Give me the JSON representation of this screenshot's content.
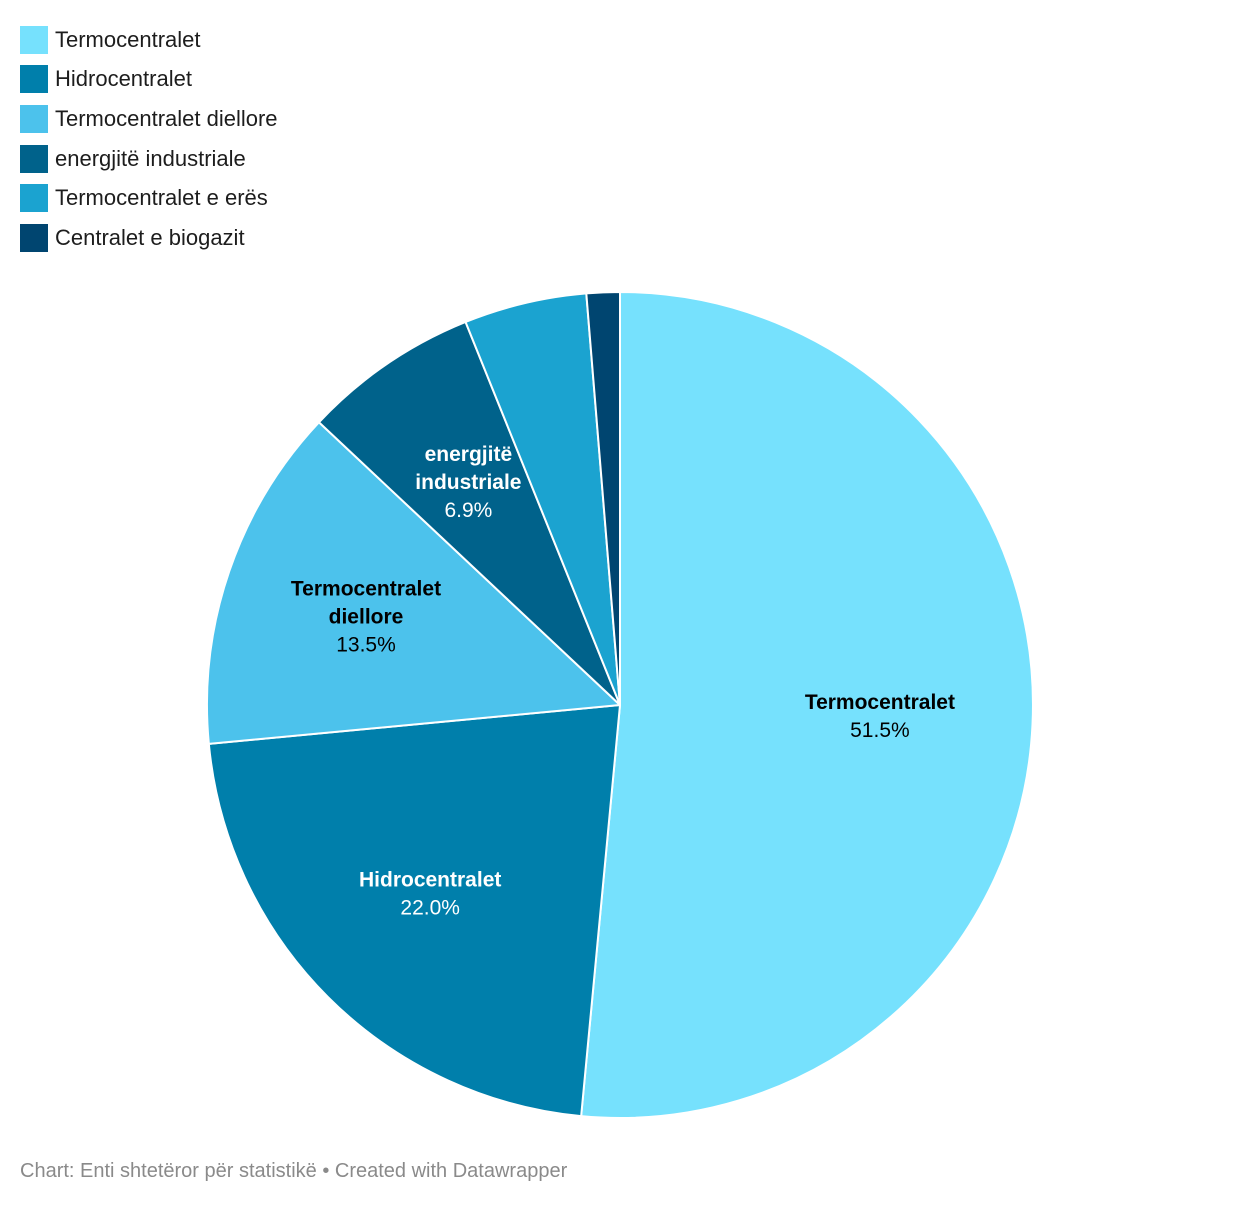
{
  "chart_data": {
    "type": "pie",
    "categories": [
      "Termocentralet",
      "Hidrocentralet",
      "Termocentralet diellore",
      "energjitë industriale",
      "Termocentralet e erës",
      "Centralet e biogazit"
    ],
    "values": [
      51.5,
      22.0,
      13.5,
      6.9,
      4.8,
      1.3
    ],
    "labels": [
      {
        "lines": [
          "Termocentralet"
        ],
        "value": "51.5%",
        "color": "#000000"
      },
      {
        "lines": [
          "Hidrocentralet"
        ],
        "value": "22.0%",
        "color": "#ffffff"
      },
      {
        "lines": [
          "Termocentralet",
          "diellore"
        ],
        "value": "13.5%",
        "color": "#000000"
      },
      {
        "lines": [
          "energjitë",
          "industriale"
        ],
        "value": "6.9%",
        "color": "#ffffff"
      },
      null,
      null
    ],
    "colors": [
      "#76e1fd",
      "#007fab",
      "#4cc2ec",
      "#00628b",
      "#1ba3d0",
      "#004570"
    ],
    "legend_position": "top-left",
    "start": "12 o'clock, clockwise"
  },
  "footer": {
    "text": "Chart: Enti shtetëror për statistikë • Created with Datawrapper"
  }
}
